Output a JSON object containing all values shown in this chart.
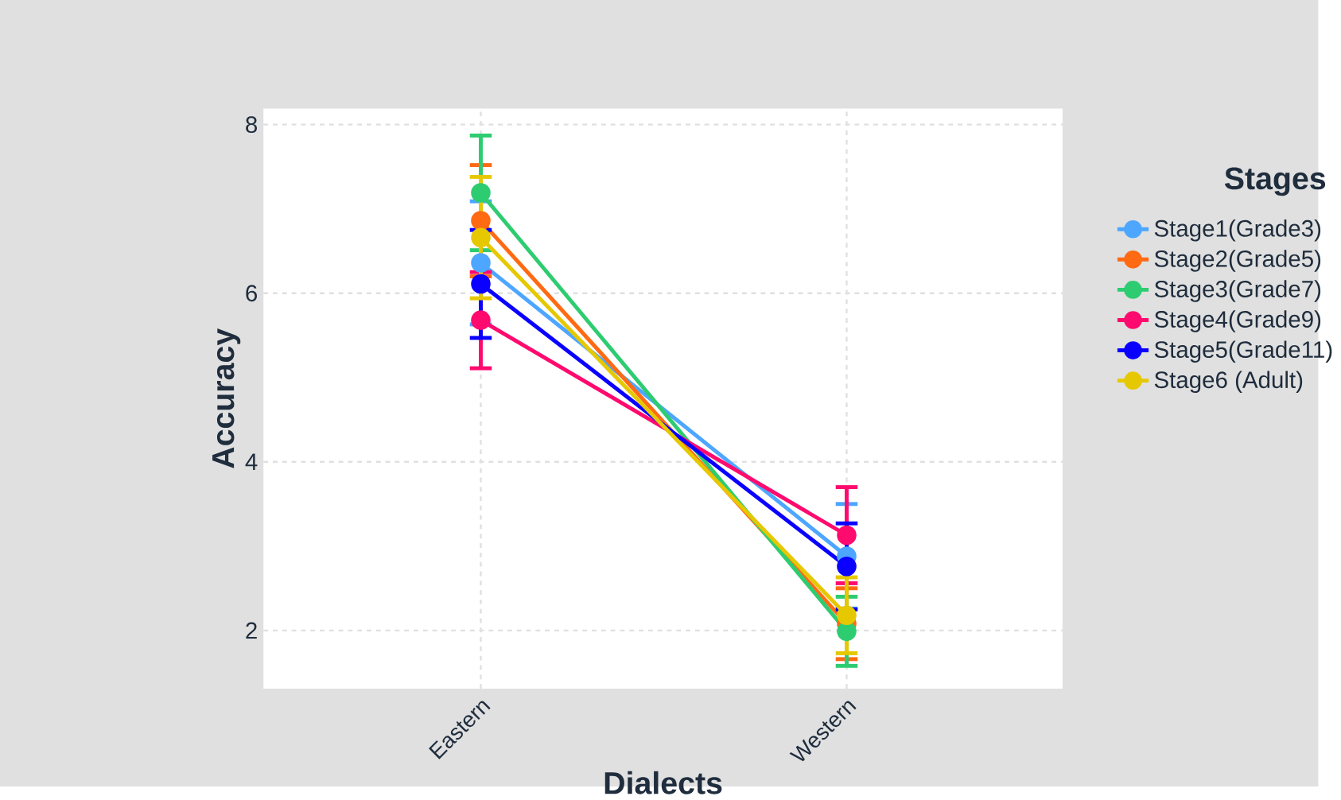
{
  "chart_data": {
    "type": "line",
    "xlabel": "Dialects",
    "ylabel": "Accuracy",
    "legend_title": "Stages",
    "categories": [
      "Eastern",
      "Western"
    ],
    "series": [
      {
        "name": "Stage1(Grade3)",
        "color": "#4da6ff",
        "values": [
          6.36,
          2.88
        ],
        "errors": [
          0.73,
          0.62
        ]
      },
      {
        "name": "Stage2(Grade5)",
        "color": "#ff6a13",
        "values": [
          6.86,
          2.08
        ],
        "errors": [
          0.66,
          0.42
        ]
      },
      {
        "name": "Stage3(Grade7)",
        "color": "#2ecc71",
        "values": [
          7.19,
          1.99
        ],
        "errors": [
          0.68,
          0.41
        ]
      },
      {
        "name": "Stage4(Grade9)",
        "color": "#ff0a6e",
        "values": [
          5.68,
          3.13
        ],
        "errors": [
          0.57,
          0.57
        ]
      },
      {
        "name": "Stage5(Grade11)",
        "color": "#0a00ff",
        "values": [
          6.11,
          2.76
        ],
        "errors": [
          0.64,
          0.51
        ]
      },
      {
        "name": "Stage6 (Adult)",
        "color": "#e6c800",
        "values": [
          6.66,
          2.18
        ],
        "errors": [
          0.72,
          0.45
        ]
      }
    ],
    "ylim": [
      1.31,
      8.19
    ],
    "yticks": [
      2,
      4,
      6,
      8
    ],
    "grid": true,
    "legend": "right",
    "marker": "circle",
    "line_style": "solid"
  }
}
